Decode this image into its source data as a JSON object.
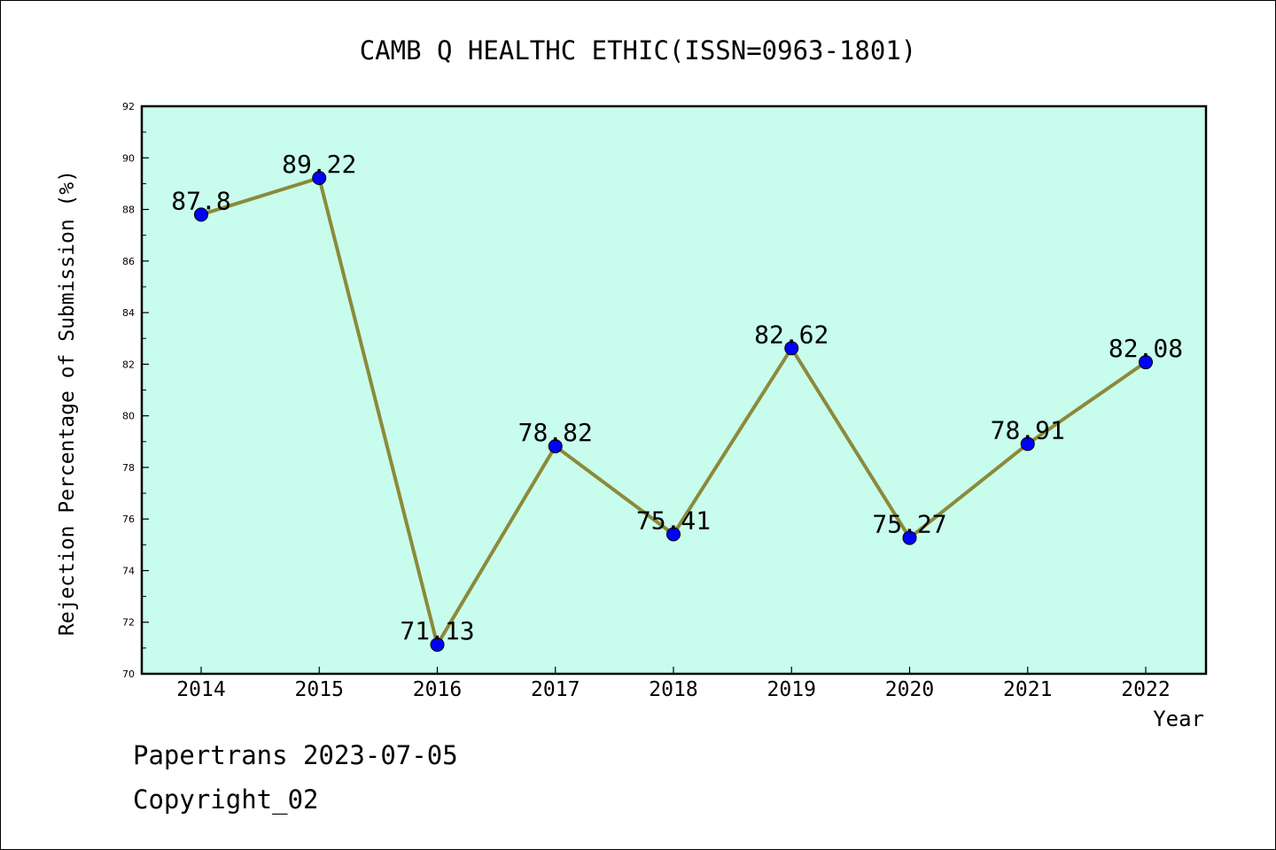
{
  "chart_data": {
    "type": "line",
    "title": "CAMB Q HEALTHC ETHIC(ISSN=0963-1801)",
    "xlabel": "Year",
    "ylabel": "Rejection Percentage of Submission (%)",
    "categories": [
      "2014",
      "2015",
      "2016",
      "2017",
      "2018",
      "2019",
      "2020",
      "2021",
      "2022"
    ],
    "values": [
      87.8,
      89.22,
      71.13,
      78.82,
      75.41,
      82.62,
      75.27,
      78.91,
      82.08
    ],
    "data_labels": [
      "87.8",
      "89.22",
      "71.13",
      "78.82",
      "75.41",
      "82.62",
      "75.27",
      "78.91",
      "82.08"
    ],
    "ylim": [
      70,
      92
    ],
    "yticks": [
      "70",
      "72",
      "74",
      "76",
      "78",
      "80",
      "82",
      "84",
      "86",
      "88",
      "90",
      "92"
    ],
    "grid": false,
    "colors": {
      "plot_background": "#c8fcec",
      "line": "#8b8a3a",
      "marker": "#0000ff",
      "axes": "#000000"
    }
  },
  "footer": {
    "source": "Papertrans 2023-07-05",
    "copyright": "Copyright_02"
  }
}
